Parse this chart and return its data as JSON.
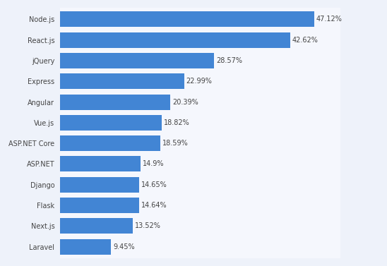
{
  "categories": [
    "Node.js",
    "React.js",
    "jQuery",
    "Express",
    "Angular",
    "Vue.js",
    "ASP.NET Core",
    "ASP.NET",
    "Django",
    "Flask",
    "Next.js",
    "Laravel"
  ],
  "values": [
    47.12,
    42.62,
    28.57,
    22.99,
    20.39,
    18.82,
    18.59,
    14.9,
    14.65,
    14.64,
    13.52,
    9.45
  ],
  "labels": [
    "47.12%",
    "42.62%",
    "28.57%",
    "22.99%",
    "20.39%",
    "18.82%",
    "18.59%",
    "14.9%",
    "14.65%",
    "14.64%",
    "13.52%",
    "9.45%"
  ],
  "bar_color": "#4285d4",
  "background_color": "#eef2fa",
  "plot_bg_color": "#f5f7fd",
  "grid_color": "#c5cfe8",
  "text_color": "#444444",
  "label_fontsize": 7.0,
  "value_fontsize": 7.0,
  "xlim": [
    0,
    52
  ],
  "bar_height": 0.75
}
